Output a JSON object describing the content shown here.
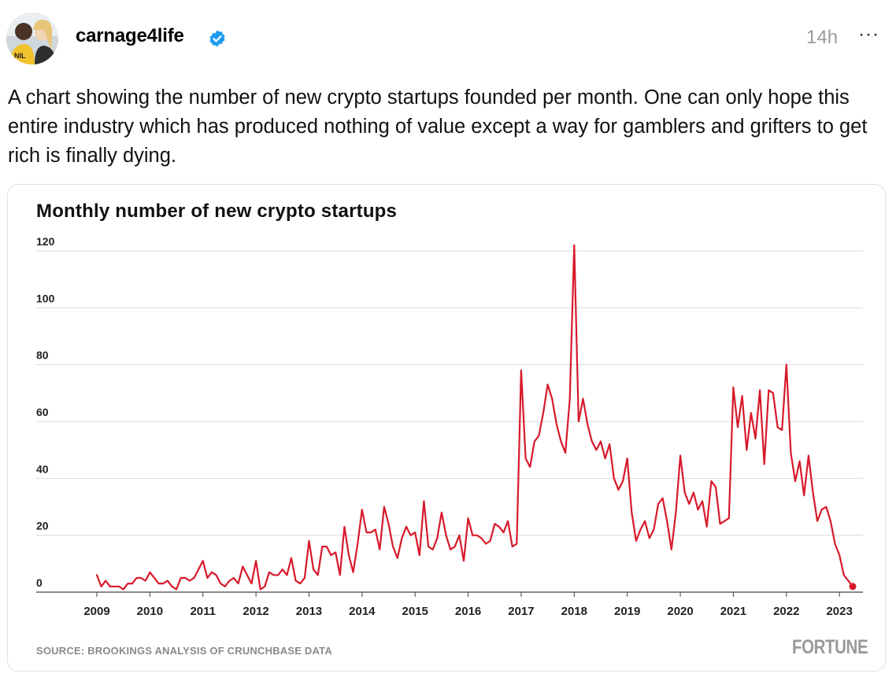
{
  "post": {
    "username": "carnage4life",
    "timestamp": "14h",
    "more_label": "···",
    "text": "A chart showing the number of new crypto startups founded per month. One can only hope this entire industry which has produced nothing of value except a way for gamblers and grifters to get rich is finally dying."
  },
  "icons": {
    "avatar": "avatar-photo",
    "verified": "verified-badge-icon",
    "more": "more-options-icon"
  },
  "colors": {
    "line": "#d7192a",
    "verified": "#1d9bf0",
    "grid": "#d9d9d9",
    "muted": "#8a8a8a"
  },
  "card": {
    "source": "SOURCE: BROOKINGS ANALYSIS OF CRUNCHBASE DATA",
    "brand": "FORTUNE"
  },
  "chart_data": {
    "type": "line",
    "title": "Monthly number of new crypto startups",
    "xlabel": "",
    "ylabel": "",
    "ylim": [
      0,
      120
    ],
    "yticks": [
      0,
      20,
      40,
      60,
      80,
      100,
      120
    ],
    "xticks": [
      "2009",
      "2010",
      "2011",
      "2012",
      "2013",
      "2014",
      "2015",
      "2016",
      "2017",
      "2018",
      "2019",
      "2020",
      "2021",
      "2022",
      "2023"
    ],
    "grid": true,
    "series": [
      {
        "values": [
          6,
          2,
          4,
          2,
          2,
          2,
          1,
          3,
          3,
          5,
          5,
          4,
          7,
          5,
          3,
          3,
          4,
          2,
          1,
          5,
          5,
          4,
          5,
          8,
          11,
          5,
          7,
          6,
          3,
          2,
          4,
          5,
          3,
          9,
          6,
          3,
          11,
          1,
          2,
          7,
          6,
          6,
          8,
          6,
          12,
          4,
          3,
          5,
          18,
          8,
          6,
          16,
          16,
          13,
          14,
          6,
          23,
          13,
          7,
          17,
          29,
          21,
          21,
          22,
          15,
          30,
          24,
          16,
          12,
          19,
          23,
          20,
          21,
          13,
          32,
          16,
          15,
          19,
          28,
          20,
          15,
          16,
          20,
          11,
          26,
          20,
          20,
          19,
          17,
          18,
          24,
          23,
          21,
          25,
          16,
          17,
          78,
          47,
          44,
          53,
          55,
          63,
          73,
          68,
          59,
          53,
          49,
          68,
          122,
          60,
          68,
          59,
          53,
          50,
          53,
          47,
          52,
          40,
          36,
          39,
          47,
          28,
          18,
          22,
          25,
          19,
          22,
          31,
          33,
          25,
          15,
          28,
          48,
          35,
          31,
          35,
          29,
          32,
          23,
          39,
          37,
          24,
          25,
          26,
          72,
          58,
          69,
          50,
          63,
          54,
          71,
          45,
          71,
          70,
          58,
          57,
          80,
          49,
          39,
          46,
          34,
          48,
          35,
          25,
          29,
          30,
          25,
          17,
          13,
          6,
          4,
          2
        ]
      }
    ]
  }
}
